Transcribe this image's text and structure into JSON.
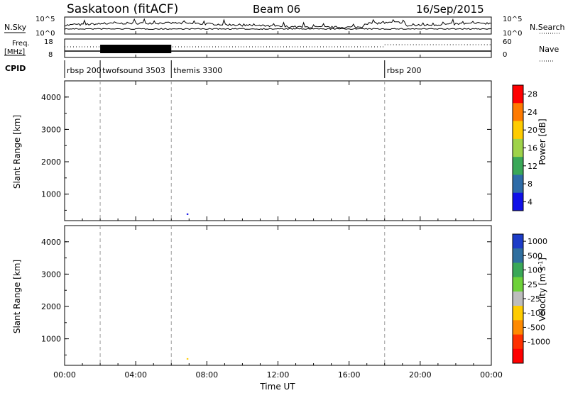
{
  "header": {
    "station": "Saskatoon (fitACF)",
    "beam": "Beam 06",
    "date": "16/Sep/2015"
  },
  "top_panel": {
    "nsky_label": "N.Sky",
    "nsearch_label": "N.Search",
    "left_ticks": [
      "10^5",
      "10^0"
    ],
    "right_ticks": [
      "10^5",
      "10^0"
    ]
  },
  "freq_panel": {
    "freq_label": "Freq.",
    "freq_unit": "[MHz]",
    "nave_label": "Nave",
    "left_ticks": [
      "18",
      "8"
    ],
    "right_ticks": [
      "60",
      "0"
    ]
  },
  "cpid": {
    "label": "CPID",
    "segments": [
      {
        "name": "rbsp 200",
        "start_hour": 0
      },
      {
        "name": "twofsound 3503",
        "start_hour": 2
      },
      {
        "name": "themis 3300",
        "start_hour": 6
      },
      {
        "name": "rbsp 200",
        "start_hour": 18
      }
    ]
  },
  "colors": {
    "accent_blue": "#1c3cc8",
    "grey_scatter": "#bdbdbd"
  },
  "chart_data": [
    {
      "type": "heatmap",
      "panel": "power",
      "ylabel": "Slant Range [km]",
      "yticks": [
        "4000",
        "3000",
        "2000",
        "1000"
      ],
      "ylim": [
        180,
        4500
      ],
      "colorbar_label": "Power [dB]",
      "colorbar_ticks": [
        "28",
        "24",
        "20",
        "16",
        "12",
        "8",
        "4"
      ],
      "colorbar_colors": [
        "#ff0000",
        "#ff7a00",
        "#ffcc00",
        "#9fd34a",
        "#3aa858",
        "#2e6ca8",
        "#1010e8"
      ]
    },
    {
      "type": "heatmap",
      "panel": "velocity",
      "ylabel": "Slant Range [km]",
      "yticks": [
        "4000",
        "3000",
        "2000",
        "1000"
      ],
      "ylim": [
        180,
        4500
      ],
      "colorbar_label": "Velocity [m s",
      "colorbar_sup": "-1",
      "colorbar_ticks": [
        "1000",
        "500",
        "100",
        "25",
        "-25",
        "-100",
        "-500",
        "-1000"
      ],
      "colorbar_colors": [
        "#1c3cc8",
        "#2f6f9f",
        "#3aa858",
        "#6ed23a",
        "#bdbdbd",
        "#ffcc00",
        "#ff8a00",
        "#ff3000",
        "#ff0000"
      ]
    }
  ],
  "xaxis": {
    "label": "Time UT",
    "ticks": [
      "00:00",
      "04:00",
      "08:00",
      "12:00",
      "16:00",
      "20:00",
      "00:00"
    ]
  }
}
